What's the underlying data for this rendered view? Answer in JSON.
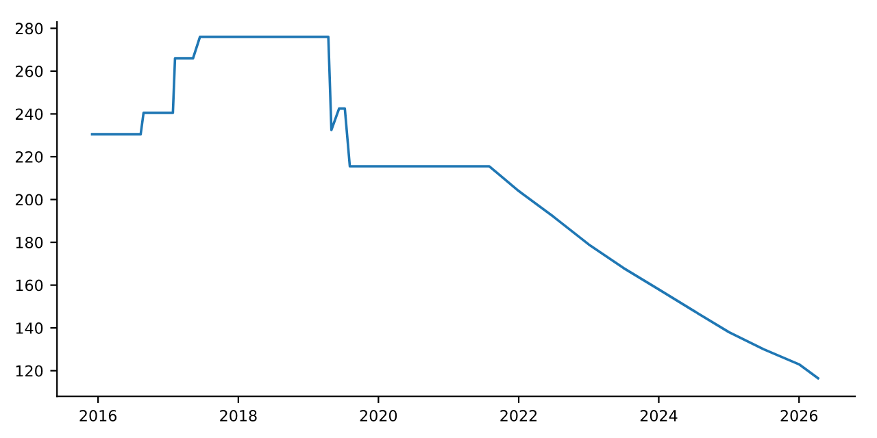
{
  "chart_data": {
    "type": "line",
    "x": [
      "2015-12-01",
      "2016-08-10",
      "2016-08-25",
      "2017-01-25",
      "2017-02-05",
      "2017-05-10",
      "2017-06-15",
      "2019-04-15",
      "2019-05-01",
      "2019-06-10",
      "2019-07-10",
      "2019-08-05",
      "2021-08-01",
      "2022-01-01",
      "2022-07-01",
      "2023-01-01",
      "2023-07-01",
      "2024-01-01",
      "2024-07-01",
      "2025-01-01",
      "2025-07-01",
      "2026-01-01",
      "2026-04-10"
    ],
    "series": [
      {
        "color": "#1f77b4",
        "values": [
          230.5,
          230.5,
          240.5,
          240.5,
          266,
          266,
          276,
          276,
          232.5,
          242.5,
          242.5,
          215.5,
          215.5,
          204,
          192,
          179,
          168,
          158,
          148,
          138,
          130,
          123,
          116.5
        ]
      }
    ],
    "xlim": [
      "2015-06-01",
      "2026-10-20"
    ],
    "xticks": [
      {
        "value": "2016-01-01",
        "label": "2016"
      },
      {
        "value": "2018-01-01",
        "label": "2018"
      },
      {
        "value": "2020-01-01",
        "label": "2020"
      },
      {
        "value": "2022-01-01",
        "label": "2022"
      },
      {
        "value": "2024-01-01",
        "label": "2024"
      },
      {
        "value": "2026-01-01",
        "label": "2026"
      }
    ],
    "ylim": [
      108,
      283
    ],
    "yticks": [
      120,
      140,
      160,
      180,
      200,
      220,
      240,
      260,
      280
    ],
    "grid": false,
    "legend": false,
    "marker": "none",
    "line_style": "solid"
  }
}
